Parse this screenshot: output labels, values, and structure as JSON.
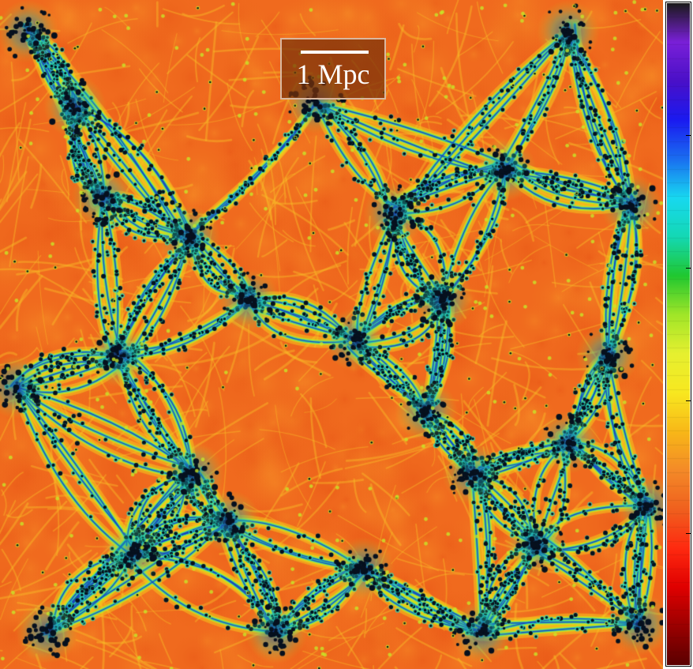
{
  "image": {
    "description_kind": "cosmic-web density map",
    "palette": {
      "void": "#f06a1e",
      "sheet": "#f5a020",
      "filament_outer": "#c8e61e",
      "filament_mid": "#2ad8b0",
      "filament_core": "#1a3cbf",
      "halo": "#06101e"
    }
  },
  "scale_bar": {
    "label": "1 Mpc",
    "box_color": "#7a320a",
    "border_color": "#d9b8a0"
  },
  "colorbar": {
    "stops": [
      "#5a0000",
      "#9b0000",
      "#e00000",
      "#ff2a10",
      "#f0601e",
      "#f48a28",
      "#f8b818",
      "#f8e820",
      "#e6f030",
      "#a0e628",
      "#20c830",
      "#14d8b4",
      "#18d8f0",
      "#1a6ef0",
      "#1a1af0",
      "#4a10c8",
      "#7a20d8",
      "#1a1a1a"
    ],
    "tick_count": 5
  }
}
